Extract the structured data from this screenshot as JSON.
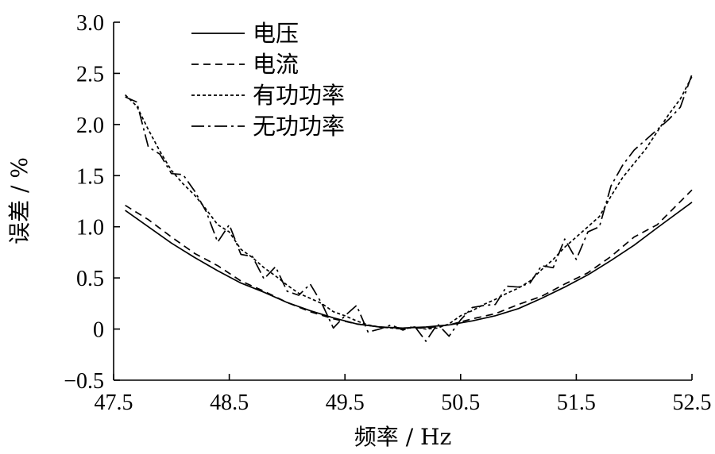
{
  "chart_data": {
    "type": "line",
    "xlabel": "频率 / Hz",
    "ylabel": "误差 / %",
    "xlim": [
      47.5,
      52.5
    ],
    "ylim": [
      -0.5,
      3.0
    ],
    "xticks": [
      47.5,
      48.5,
      49.5,
      50.5,
      51.5,
      52.5
    ],
    "xtick_labels": [
      "47.5",
      "48.5",
      "49.5",
      "50.5",
      "51.5",
      "52.5"
    ],
    "yticks": [
      -0.5,
      0,
      0.5,
      1.0,
      1.5,
      2.0,
      2.5,
      3.0
    ],
    "ytick_labels": [
      "−0.5",
      "0",
      "0.5",
      "1.0",
      "1.5",
      "2.0",
      "2.5",
      "3.0"
    ],
    "grid": false,
    "legend_position": "top-left",
    "series": [
      {
        "name": "电压",
        "style": "solid",
        "x": [
          47.6,
          47.8,
          48.0,
          48.2,
          48.4,
          48.6,
          48.8,
          49.0,
          49.2,
          49.4,
          49.6,
          49.8,
          50.0,
          50.2,
          50.4,
          50.6,
          50.8,
          51.0,
          51.2,
          51.4,
          51.6,
          51.8,
          52.0,
          52.2,
          52.5
        ],
        "y": [
          1.16,
          1.0,
          0.84,
          0.7,
          0.57,
          0.45,
          0.36,
          0.26,
          0.18,
          0.11,
          0.05,
          0.02,
          0.01,
          0.02,
          0.04,
          0.08,
          0.13,
          0.2,
          0.3,
          0.41,
          0.53,
          0.67,
          0.82,
          0.99,
          1.24
        ]
      },
      {
        "name": "电流",
        "style": "dashed",
        "x": [
          47.6,
          47.8,
          48.0,
          48.2,
          48.4,
          48.6,
          48.8,
          49.0,
          49.2,
          49.4,
          49.6,
          49.8,
          50.0,
          50.2,
          50.4,
          50.6,
          50.8,
          51.0,
          51.2,
          51.4,
          51.6,
          51.8,
          52.0,
          52.2,
          52.5
        ],
        "y": [
          1.21,
          1.07,
          0.9,
          0.74,
          0.62,
          0.47,
          0.37,
          0.26,
          0.17,
          0.1,
          0.05,
          0.02,
          0.01,
          0.01,
          0.04,
          0.1,
          0.15,
          0.24,
          0.32,
          0.44,
          0.55,
          0.71,
          0.9,
          1.02,
          1.36
        ]
      },
      {
        "name": "有功功率",
        "style": "dotted",
        "x": [
          47.6,
          47.7,
          47.8,
          47.9,
          48.0,
          48.1,
          48.2,
          48.3,
          48.4,
          48.5,
          48.6,
          48.7,
          48.8,
          48.9,
          49.0,
          49.1,
          49.2,
          49.3,
          49.4,
          49.5,
          49.6,
          49.7,
          49.8,
          49.9,
          50.0,
          50.1,
          50.2,
          50.3,
          50.4,
          50.5,
          50.6,
          50.7,
          50.8,
          50.9,
          51.0,
          51.1,
          51.2,
          51.3,
          51.4,
          51.5,
          51.6,
          51.7,
          51.8,
          51.9,
          52.0,
          52.1,
          52.2,
          52.3,
          52.4,
          52.5
        ],
        "y": [
          2.29,
          2.18,
          1.95,
          1.74,
          1.55,
          1.42,
          1.31,
          1.17,
          1.02,
          0.95,
          0.78,
          0.7,
          0.6,
          0.52,
          0.43,
          0.35,
          0.3,
          0.25,
          0.17,
          0.13,
          0.08,
          0.04,
          0.02,
          0.01,
          0.0,
          0.02,
          0.0,
          0.01,
          0.05,
          0.13,
          0.18,
          0.24,
          0.29,
          0.35,
          0.4,
          0.47,
          0.58,
          0.68,
          0.8,
          0.9,
          1.0,
          1.1,
          1.3,
          1.48,
          1.62,
          1.76,
          1.93,
          2.1,
          2.25,
          2.47
        ]
      },
      {
        "name": "无功功率",
        "style": "dashdot",
        "x": [
          47.6,
          47.7,
          47.8,
          47.9,
          48.0,
          48.1,
          48.2,
          48.3,
          48.4,
          48.5,
          48.6,
          48.7,
          48.8,
          48.9,
          49.0,
          49.1,
          49.2,
          49.3,
          49.4,
          49.5,
          49.6,
          49.7,
          49.8,
          49.9,
          50.0,
          50.1,
          50.2,
          50.3,
          50.4,
          50.5,
          50.6,
          50.7,
          50.8,
          50.9,
          51.0,
          51.1,
          51.2,
          51.3,
          51.4,
          51.5,
          51.6,
          51.7,
          51.8,
          51.9,
          52.0,
          52.1,
          52.2,
          52.3,
          52.4,
          52.5
        ],
        "y": [
          2.27,
          2.22,
          1.78,
          1.71,
          1.52,
          1.51,
          1.35,
          1.15,
          0.85,
          1.02,
          0.73,
          0.71,
          0.49,
          0.61,
          0.37,
          0.33,
          0.44,
          0.25,
          0.01,
          0.13,
          0.23,
          -0.03,
          0.0,
          0.04,
          -0.01,
          0.03,
          -0.12,
          0.05,
          -0.07,
          0.09,
          0.21,
          0.23,
          0.24,
          0.42,
          0.41,
          0.45,
          0.62,
          0.6,
          0.88,
          0.68,
          0.95,
          1.0,
          1.4,
          1.6,
          1.75,
          1.85,
          1.95,
          2.05,
          2.17,
          2.49
        ]
      }
    ]
  }
}
